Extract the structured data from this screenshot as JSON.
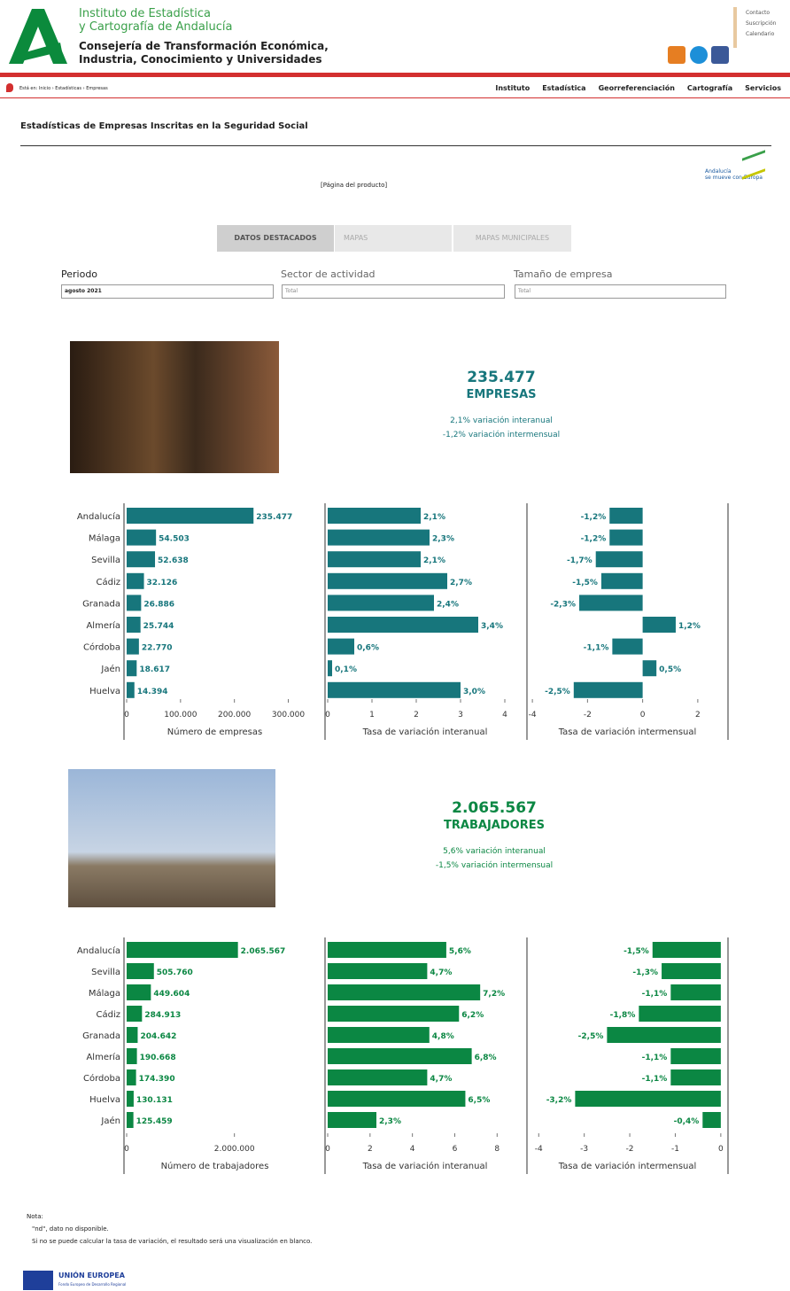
{
  "header": {
    "institute": [
      "Instituto de Estadística",
      "y Cartografía de Andalucía"
    ],
    "ministry": [
      "Consejería de Transformación Económica,",
      "Industria, Conocimiento y Universidades"
    ],
    "top_links": [
      "Contacto",
      "Suscripción",
      "Calendario"
    ]
  },
  "breadcrumb": "Está en: Inicio › Estadísticas › Empresas",
  "nav": [
    "Instituto",
    "Estadística",
    "Georreferenciación",
    "Cartografía",
    "Servicios"
  ],
  "page_title": "Estadísticas de Empresas Inscritas en la Seguridad Social",
  "brand": [
    "Andalucía",
    "se mueve con Europa"
  ],
  "product_link": "[Página del producto]",
  "tabs": [
    "DATOS DESTACADOS",
    "MAPAS",
    "MAPAS MUNICIPALES"
  ],
  "filters": [
    {
      "label": "Periodo",
      "value": "agosto 2021"
    },
    {
      "label": "Sector de actividad",
      "value": "Total"
    },
    {
      "label": "Tamaño de empresa",
      "value": "Total"
    }
  ],
  "kpis": [
    {
      "number": "235.477",
      "label": "EMPRESAS",
      "lines": [
        "2,1% variación interanual",
        "-1,2% variación intermensual"
      ]
    },
    {
      "number": "2.065.567",
      "label": "TRABAJADORES",
      "lines": [
        "5,6% variación interanual",
        "-1,5% variación intermensual"
      ]
    }
  ],
  "chart_data": [
    {
      "type": "bar",
      "orientation": "horizontal",
      "categories": [
        "Andalucía",
        "Málaga",
        "Sevilla",
        "Cádiz",
        "Granada",
        "Almería",
        "Córdoba",
        "Jaén",
        "Huelva"
      ],
      "panels": [
        {
          "xlabel": "Número de empresas",
          "color": "#17767c",
          "xlim": [
            0,
            360000
          ],
          "xticks": [
            0,
            {
              "value": 100000,
              "label": "100.000"
            },
            {
              "value": 200000,
              "label": "200.000"
            },
            {
              "value": 300000,
              "label": "300.000"
            }
          ],
          "values": [
            235477,
            54503,
            52638,
            32126,
            26886,
            25744,
            22770,
            18617,
            14394
          ],
          "value_labels": [
            "235.477",
            "54.503",
            "52.638",
            "32.126",
            "26.886",
            "25.744",
            "22.770",
            "18.617",
            "14.394"
          ]
        },
        {
          "xlabel": "Tasa de variación interanual",
          "color": "#17767c",
          "xlim": [
            0,
            4.4
          ],
          "xticks": [
            0,
            1,
            2,
            3,
            4
          ],
          "values": [
            2.1,
            2.3,
            2.1,
            2.7,
            2.4,
            3.4,
            0.6,
            0.1,
            3.0
          ],
          "value_labels": [
            "2,1%",
            "2,3%",
            "2,1%",
            "2,7%",
            "2,4%",
            "3,4%",
            "0,6%",
            "0,1%",
            "3,0%"
          ]
        },
        {
          "xlabel": "Tasa de variación intermensual",
          "color": "#17767c",
          "xlim": [
            -4.1,
            3
          ],
          "xticks": [
            -4,
            -2,
            0,
            2
          ],
          "values": [
            -1.2,
            -1.2,
            -1.7,
            -1.5,
            -2.3,
            1.2,
            -1.1,
            0.5,
            -2.5
          ],
          "value_labels": [
            "-1,2%",
            "-1,2%",
            "-1,7%",
            "-1,5%",
            "-2,3%",
            "1,2%",
            "-1,1%",
            "0,5%",
            "-2,5%"
          ]
        }
      ]
    },
    {
      "type": "bar",
      "orientation": "horizontal",
      "categories": [
        "Andalucía",
        "Sevilla",
        "Málaga",
        "Cádiz",
        "Granada",
        "Almería",
        "Córdoba",
        "Huelva",
        "Jaén"
      ],
      "panels": [
        {
          "xlabel": "Número de trabajadores",
          "color": "#0b8743",
          "xlim": [
            0,
            3600000
          ],
          "xticks": [
            0,
            {
              "value": 2000000,
              "label": "2.000.000"
            }
          ],
          "values": [
            2065567,
            505760,
            449604,
            284913,
            204642,
            190668,
            174390,
            130131,
            125459
          ],
          "value_labels": [
            "2.065.567",
            "505.760",
            "449.604",
            "284.913",
            "204.642",
            "190.668",
            "174.390",
            "130.131",
            "125.459"
          ]
        },
        {
          "xlabel": "Tasa de variación interanual",
          "color": "#0b8743",
          "xlim": [
            0,
            9.2
          ],
          "xticks": [
            0,
            2,
            4,
            6,
            8
          ],
          "values": [
            5.6,
            4.7,
            7.2,
            6.2,
            4.8,
            6.8,
            4.7,
            6.5,
            2.3
          ],
          "value_labels": [
            "5,6%",
            "4,7%",
            "7,2%",
            "6,2%",
            "4,8%",
            "6,8%",
            "4,7%",
            "6,5%",
            "2,3%"
          ]
        },
        {
          "xlabel": "Tasa de variación intermensual",
          "color": "#0b8743",
          "xlim": [
            -4.2,
            0.1
          ],
          "xticks": [
            -4,
            -3,
            -2,
            -1,
            0
          ],
          "values": [
            -1.5,
            -1.3,
            -1.1,
            -1.8,
            -2.5,
            -1.1,
            -1.1,
            -3.2,
            -0.4
          ],
          "value_labels": [
            "-1,5%",
            "-1,3%",
            "-1,1%",
            "-1,8%",
            "-2,5%",
            "-1,1%",
            "-1,1%",
            "-3,2%",
            "-0,4%"
          ]
        }
      ]
    }
  ],
  "notes": {
    "title": "Nota:",
    "items": [
      "\"nd\", dato no disponible.",
      "Si no se puede calcular la tasa de variación, el resultado será una visualización en blanco."
    ]
  },
  "footer": {
    "eu": "UNIÓN EUROPEA",
    "fund": "Fondo Europeo de Desarrollo Regional"
  }
}
